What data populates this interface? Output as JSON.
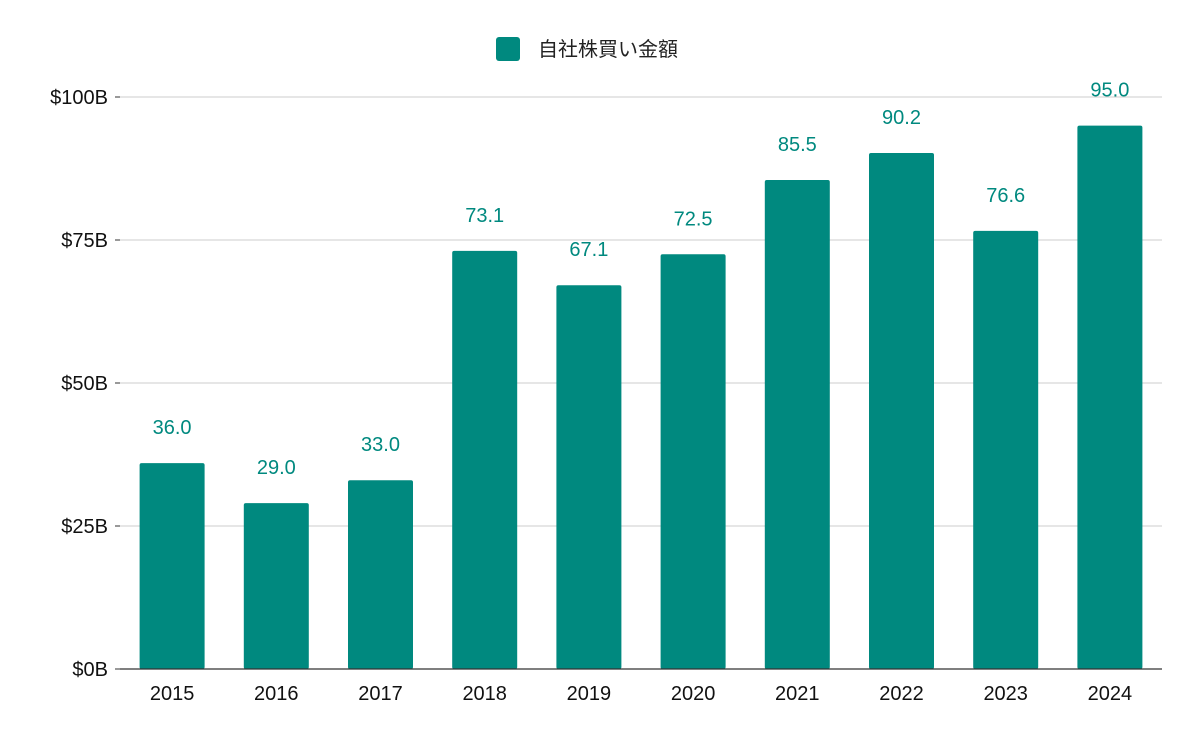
{
  "chart_data": {
    "type": "bar",
    "categories": [
      "2015",
      "2016",
      "2017",
      "2018",
      "2019",
      "2020",
      "2021",
      "2022",
      "2023",
      "2024"
    ],
    "series": [
      {
        "name": "自社株買い金額",
        "values": [
          36.0,
          29.0,
          33.0,
          73.1,
          67.1,
          72.5,
          85.5,
          90.2,
          76.6,
          95.0
        ],
        "value_labels": [
          "36.0",
          "29.0",
          "33.0",
          "73.1",
          "67.1",
          "72.5",
          "85.5",
          "90.2",
          "76.6",
          "95.0"
        ]
      }
    ],
    "ylim": [
      0,
      100
    ],
    "y_ticks": [
      0,
      25,
      50,
      75,
      100
    ],
    "y_tick_labels": [
      "$0B",
      "$25B",
      "$50B",
      "$75B",
      "$100B"
    ],
    "xlabel": "",
    "ylabel": "",
    "grid": true,
    "legend_position": "top-center",
    "colors": {
      "bar": "#00897f",
      "value_label": "#00897f",
      "grid": "#cccccc",
      "axis": "#333333"
    }
  }
}
